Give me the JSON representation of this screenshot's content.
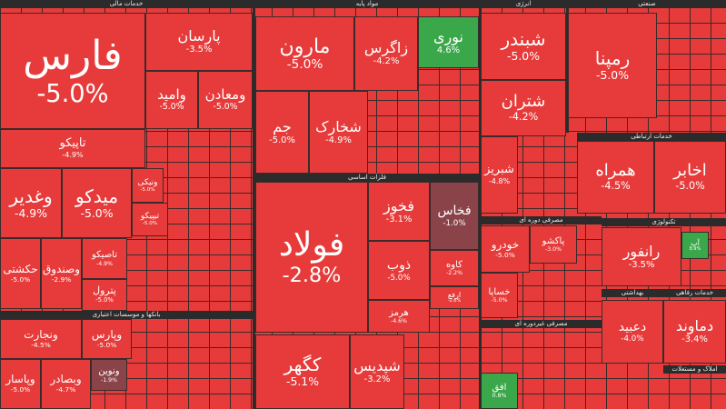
{
  "sectors": [
    {
      "name": "خدمات مالی"
    },
    {
      "name": "مواد پایه"
    },
    {
      "name": "انرژی"
    },
    {
      "name": "صنعتی"
    },
    {
      "name": "بانکها و موسسات اعتباری"
    },
    {
      "name": "فلزات اساسی"
    },
    {
      "name": "مصرفی دوره ای"
    },
    {
      "name": "مصرفی غیردوره ای"
    },
    {
      "name": "خدمات ارتباطی"
    },
    {
      "name": "تکنولوژی"
    },
    {
      "name": "بهداشتی"
    },
    {
      "name": "خدمات رفاهی"
    },
    {
      "name": "املاک و مستغلات"
    }
  ],
  "tiles": [
    {
      "name": "فارس",
      "change": "-5.0%"
    },
    {
      "name": "پارسان",
      "change": "-3.5%"
    },
    {
      "name": "وامید",
      "change": "-5.0%"
    },
    {
      "name": "ومعادن",
      "change": "-5.0%"
    },
    {
      "name": "تاپیکو",
      "change": "-4.9%"
    },
    {
      "name": "وغدیر",
      "change": "-4.9%"
    },
    {
      "name": "میدکو",
      "change": "-5.0%"
    },
    {
      "name": "ونیکی",
      "change": "-5.0%"
    },
    {
      "name": "تیپیکو",
      "change": "-5.0%"
    },
    {
      "name": "حکشتی",
      "change": "-5.0%"
    },
    {
      "name": "وصندوق",
      "change": "-2.9%"
    },
    {
      "name": "تاصیکو",
      "change": "-4.9%"
    },
    {
      "name": "پترول",
      "change": "-5.0%"
    },
    {
      "name": "ونجارت",
      "change": "-4.5%"
    },
    {
      "name": "وپارس",
      "change": "-5.0%"
    },
    {
      "name": "وپاسار",
      "change": "-5.0%"
    },
    {
      "name": "وبصادر",
      "change": "-4.7%"
    },
    {
      "name": "ونوین",
      "change": "-1.9%"
    },
    {
      "name": "مارون",
      "change": "-5.0%"
    },
    {
      "name": "زاگرس",
      "change": "-4.2%"
    },
    {
      "name": "نوری",
      "change": "4.6%"
    },
    {
      "name": "جم",
      "change": "-5.0%"
    },
    {
      "name": "شخارک",
      "change": "-4.9%"
    },
    {
      "name": "فولاد",
      "change": "-2.8%"
    },
    {
      "name": "فخوز",
      "change": "-3.1%"
    },
    {
      "name": "فخاس",
      "change": "-1.0%"
    },
    {
      "name": "ذوب",
      "change": "-5.0%"
    },
    {
      "name": "کاوه",
      "change": "-2.2%"
    },
    {
      "name": "هرمز",
      "change": "-4.6%"
    },
    {
      "name": "ارفع",
      "change": "-2.6%"
    },
    {
      "name": "کگهر",
      "change": "-5.1%"
    },
    {
      "name": "شپدیس",
      "change": "-3.2%"
    },
    {
      "name": "شبندر",
      "change": "-5.0%"
    },
    {
      "name": "شتران",
      "change": "-4.2%"
    },
    {
      "name": "شبریز",
      "change": "-4.8%"
    },
    {
      "name": "خودرو",
      "change": "-5.0%"
    },
    {
      "name": "پاکشو",
      "change": "-3.0%"
    },
    {
      "name": "خساپا",
      "change": "-5.0%"
    },
    {
      "name": "افق",
      "change": "0.8%"
    },
    {
      "name": "رمپنا",
      "change": "-5.0%"
    },
    {
      "name": "همراه",
      "change": "-4.5%"
    },
    {
      "name": "اخابر",
      "change": "-5.0%"
    },
    {
      "name": "رانفور",
      "change": "-3.5%"
    },
    {
      "name": "آپ",
      "change": "8.9%"
    },
    {
      "name": "دعبید",
      "change": "-4.0%"
    },
    {
      "name": "دماوند",
      "change": "-3.4%"
    }
  ]
}
